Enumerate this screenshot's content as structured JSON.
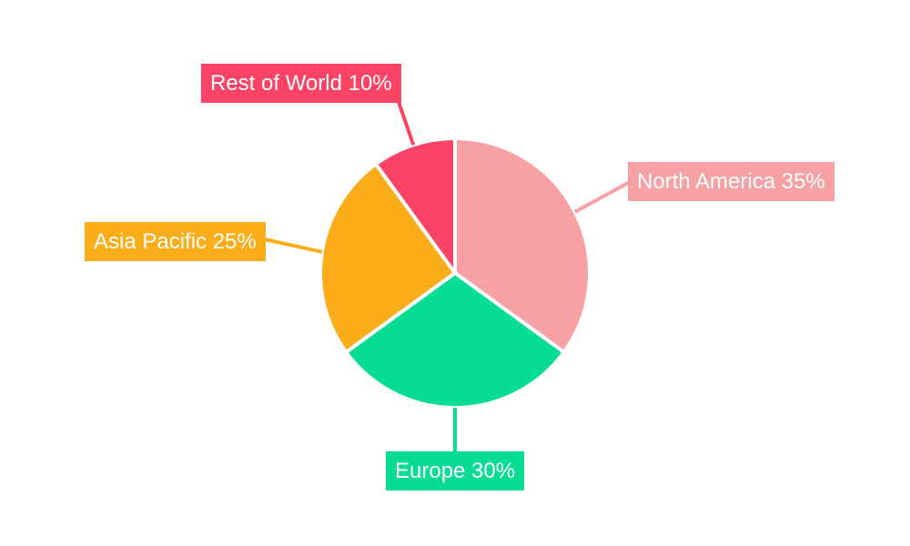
{
  "page": {
    "background": "#ffffff"
  },
  "chart_data": {
    "type": "pie",
    "title": "",
    "start_angle_deg": 0,
    "direction": "clockwise",
    "center": [
      500,
      300
    ],
    "radius": 148,
    "slice_gap_color": "#ffffff",
    "legend_position": "none",
    "label_style": "boxed-callouts-with-leader-lines",
    "text_color": "#ffffff",
    "slices": [
      {
        "id": "north-america",
        "label": "North America",
        "value": 35,
        "unit": "%",
        "display": "North America 35%",
        "color": "#F7A1A5"
      },
      {
        "id": "europe",
        "label": "Europe",
        "value": 30,
        "unit": "%",
        "display": "Europe 30%",
        "color": "#07DD92"
      },
      {
        "id": "asia-pacific",
        "label": "Asia Pacific",
        "value": 25,
        "unit": "%",
        "display": "Asia Pacific 25%",
        "color": "#FBAE19"
      },
      {
        "id": "rest-of-world",
        "label": "Rest of World",
        "value": 10,
        "unit": "%",
        "display": "Rest of World 10%",
        "color": "#FB4365"
      }
    ]
  }
}
